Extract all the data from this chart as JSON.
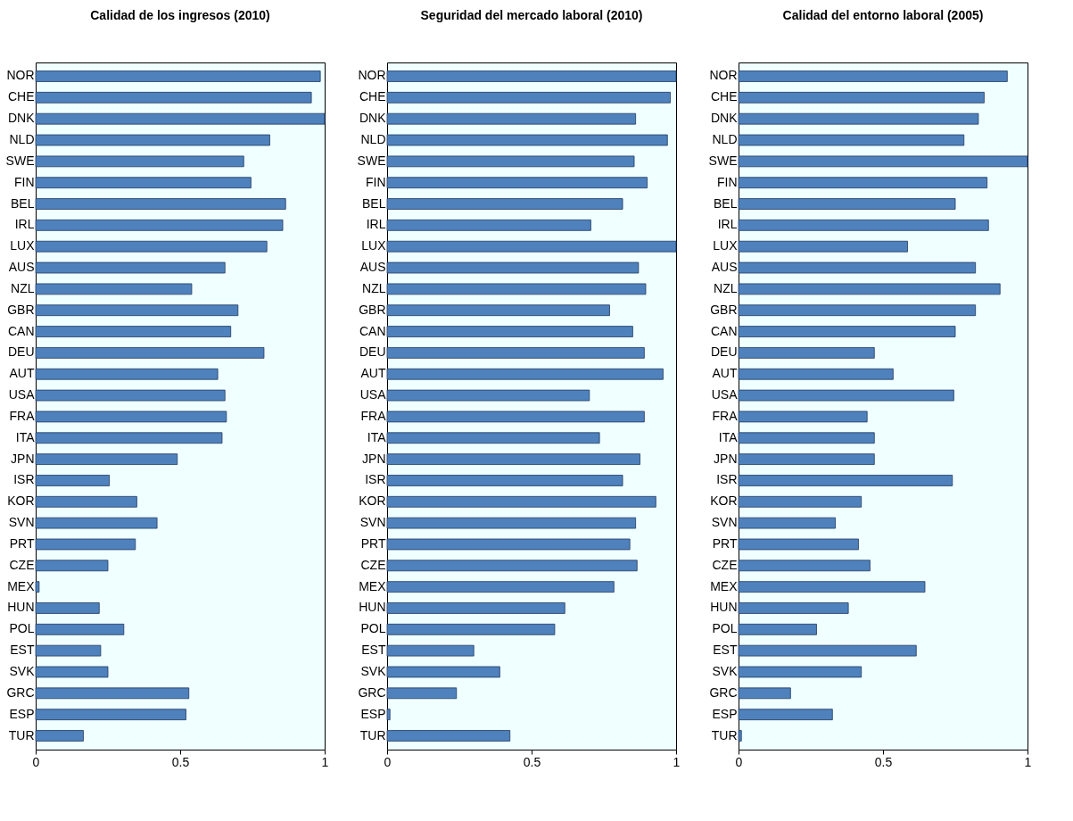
{
  "chart_data": [
    {
      "type": "bar",
      "orientation": "horizontal",
      "title": "Calidad de los ingresos (2010)",
      "categories": [
        "NOR",
        "CHE",
        "DNK",
        "NLD",
        "SWE",
        "FIN",
        "BEL",
        "IRL",
        "LUX",
        "AUS",
        "NZL",
        "GBR",
        "CAN",
        "DEU",
        "AUT",
        "USA",
        "FRA",
        "ITA",
        "JPN",
        "ISR",
        "KOR",
        "SVN",
        "PRT",
        "CZE",
        "MEX",
        "HUN",
        "POL",
        "EST",
        "SVK",
        "GRC",
        "ESP",
        "TUR"
      ],
      "values": [
        0.985,
        0.954,
        1.0,
        0.81,
        0.72,
        0.745,
        0.865,
        0.855,
        0.8,
        0.655,
        0.54,
        0.7,
        0.675,
        0.79,
        0.63,
        0.655,
        0.66,
        0.645,
        0.49,
        0.255,
        0.35,
        0.42,
        0.345,
        0.25,
        0.012,
        0.22,
        0.305,
        0.225,
        0.25,
        0.53,
        0.52,
        0.165
      ],
      "color": "#4f81bd",
      "xlim": [
        0,
        1
      ],
      "xticks": [
        0,
        0.5,
        1
      ],
      "grid": false
    },
    {
      "type": "bar",
      "orientation": "horizontal",
      "title": "Seguridad del mercado laboral (2010)",
      "categories": [
        "NOR",
        "CHE",
        "DNK",
        "NLD",
        "SWE",
        "FIN",
        "BEL",
        "IRL",
        "LUX",
        "AUS",
        "NZL",
        "GBR",
        "CAN",
        "DEU",
        "AUT",
        "USA",
        "FRA",
        "ITA",
        "JPN",
        "ISR",
        "KOR",
        "SVN",
        "PRT",
        "CZE",
        "MEX",
        "HUN",
        "POL",
        "EST",
        "SVK",
        "GRC",
        "ESP",
        "TUR"
      ],
      "values": [
        1.0,
        0.98,
        0.86,
        0.97,
        0.855,
        0.9,
        0.815,
        0.705,
        1.0,
        0.87,
        0.895,
        0.77,
        0.85,
        0.89,
        0.955,
        0.7,
        0.89,
        0.735,
        0.875,
        0.815,
        0.93,
        0.86,
        0.84,
        0.865,
        0.785,
        0.615,
        0.58,
        0.3,
        0.39,
        0.24,
        0.01,
        0.425
      ],
      "color": "#4f81bd",
      "xlim": [
        0,
        1
      ],
      "xticks": [
        0,
        0.5,
        1
      ],
      "grid": false
    },
    {
      "type": "bar",
      "orientation": "horizontal",
      "title": "Calidad del entorno laboral (2005)",
      "categories": [
        "NOR",
        "CHE",
        "DNK",
        "NLD",
        "SWE",
        "FIN",
        "BEL",
        "IRL",
        "LUX",
        "AUS",
        "NZL",
        "GBR",
        "CAN",
        "DEU",
        "AUT",
        "USA",
        "FRA",
        "ITA",
        "JPN",
        "ISR",
        "KOR",
        "SVN",
        "PRT",
        "CZE",
        "MEX",
        "HUN",
        "POL",
        "EST",
        "SVK",
        "GRC",
        "ESP",
        "TUR"
      ],
      "values": [
        0.93,
        0.85,
        0.83,
        0.78,
        1.0,
        0.86,
        0.75,
        0.865,
        0.585,
        0.82,
        0.905,
        0.82,
        0.75,
        0.47,
        0.535,
        0.745,
        0.445,
        0.47,
        0.47,
        0.74,
        0.425,
        0.335,
        0.415,
        0.455,
        0.645,
        0.38,
        0.27,
        0.615,
        0.425,
        0.18,
        0.325,
        0.01
      ],
      "color": "#4f81bd",
      "xlim": [
        0,
        1
      ],
      "xticks": [
        0,
        0.5,
        1
      ],
      "grid": false
    }
  ]
}
